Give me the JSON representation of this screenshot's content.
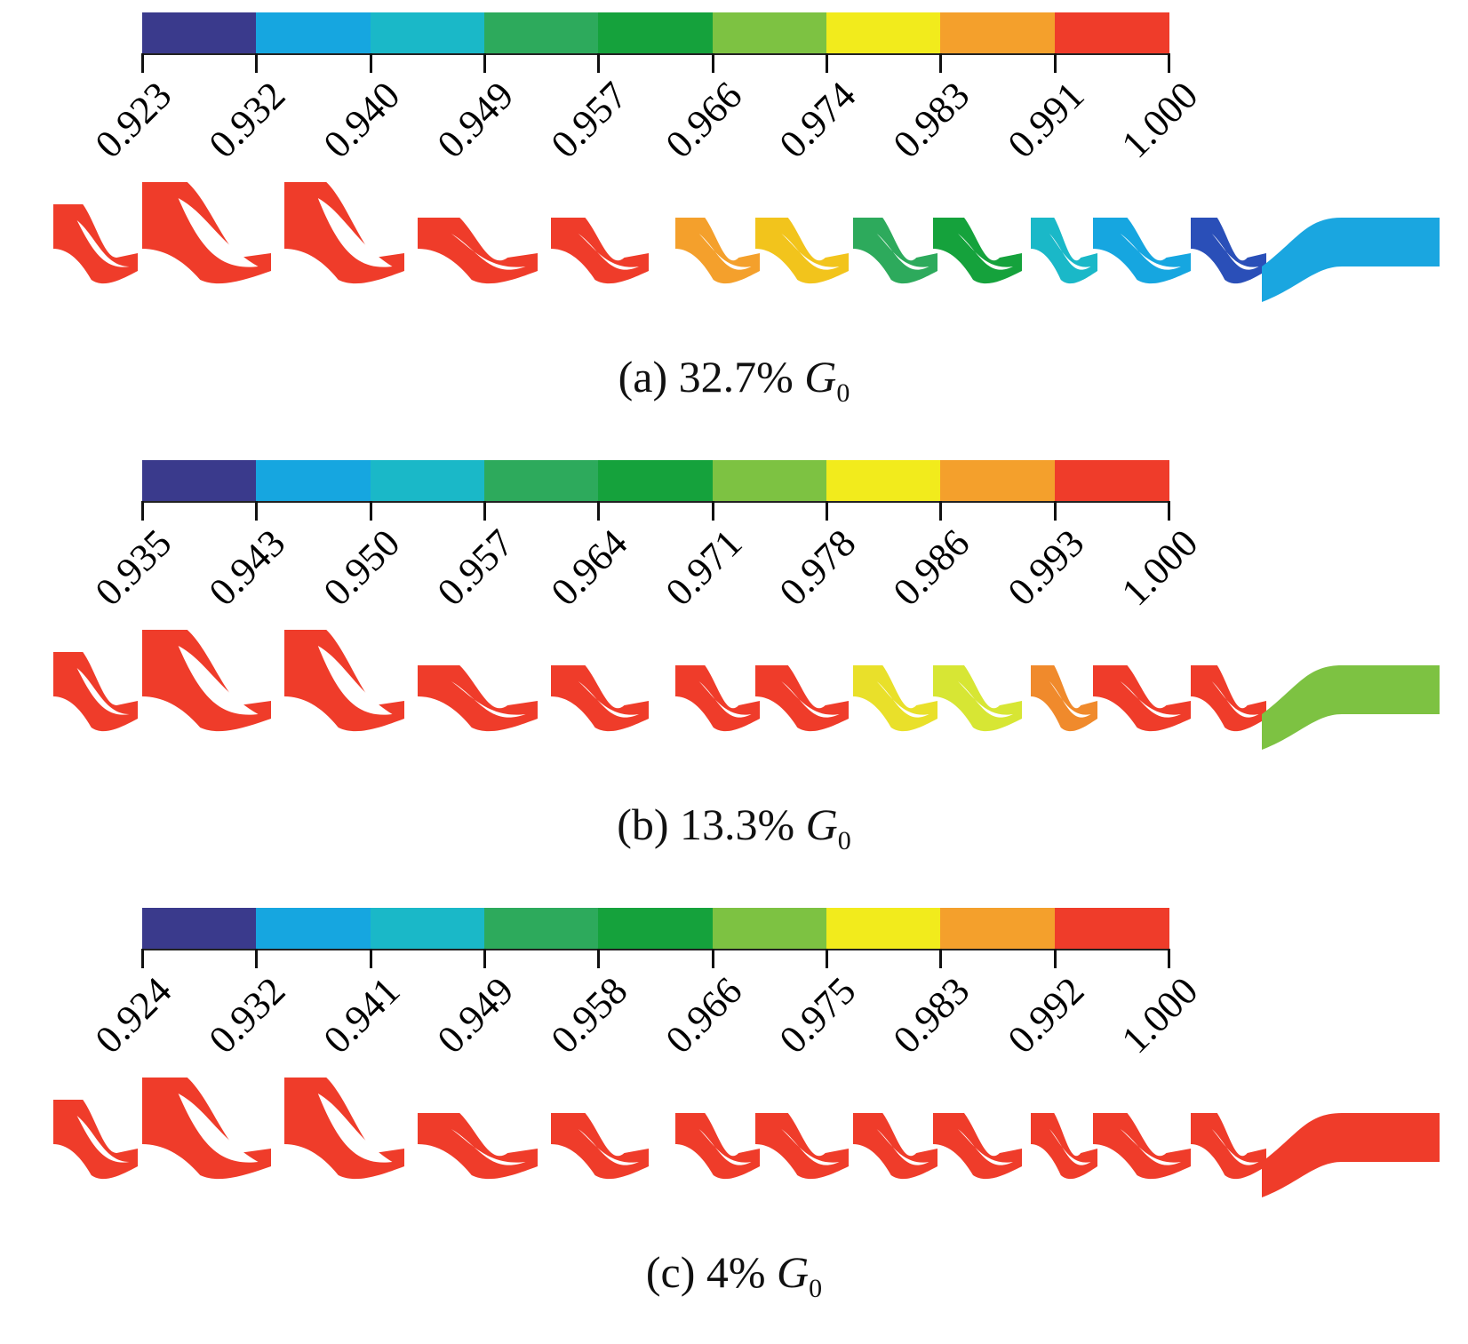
{
  "colormap": [
    "#3a3a8c",
    "#16a6e0",
    "#1ab8c8",
    "#2daa5c",
    "#15a23c",
    "#7dc242",
    "#f2eb1c",
    "#f4a02c",
    "#ef3c2a"
  ],
  "panels": [
    {
      "id": "a",
      "caption_prefix": "(a) 32.7%",
      "caption_var": "G",
      "caption_sub": "0",
      "ticks": [
        "0.923",
        "0.932",
        "0.940",
        "0.949",
        "0.957",
        "0.966",
        "0.974",
        "0.983",
        "0.991",
        "1.000"
      ],
      "stage_colors": [
        "#ef3c2a",
        "#ef3c2a",
        "#ef3c2a",
        "#ef3c2a",
        "#ef3c2a",
        "#f4a02c",
        "#f2c41c",
        "#2daa5c",
        "#15a23c",
        "#1ab8c8",
        "#16a6e0",
        "#2a4fb8",
        "#1aa6e0"
      ]
    },
    {
      "id": "b",
      "caption_prefix": "(b) 13.3%",
      "caption_var": "G",
      "caption_sub": "0",
      "ticks": [
        "0.935",
        "0.943",
        "0.950",
        "0.957",
        "0.964",
        "0.971",
        "0.978",
        "0.986",
        "0.993",
        "1.000"
      ],
      "stage_colors": [
        "#ef3c2a",
        "#ef3c2a",
        "#ef3c2a",
        "#ef3c2a",
        "#ef3c2a",
        "#ef3c2a",
        "#ef3c2a",
        "#e9e02a",
        "#d7e634",
        "#f08a2c",
        "#ef3c2a",
        "#ef3c2a",
        "#7dc242"
      ]
    },
    {
      "id": "c",
      "caption_prefix": "(c) 4%",
      "caption_var": "G",
      "caption_sub": "0",
      "ticks": [
        "0.924",
        "0.932",
        "0.941",
        "0.949",
        "0.958",
        "0.966",
        "0.975",
        "0.983",
        "0.992",
        "1.000"
      ],
      "stage_colors": [
        "#ef3c2a",
        "#ef3c2a",
        "#ef3c2a",
        "#ef3c2a",
        "#ef3c2a",
        "#ef3c2a",
        "#ef3c2a",
        "#ef3c2a",
        "#ef3c2a",
        "#ef3c2a",
        "#ef3c2a",
        "#ef3c2a",
        "#ef3c2a"
      ]
    }
  ]
}
